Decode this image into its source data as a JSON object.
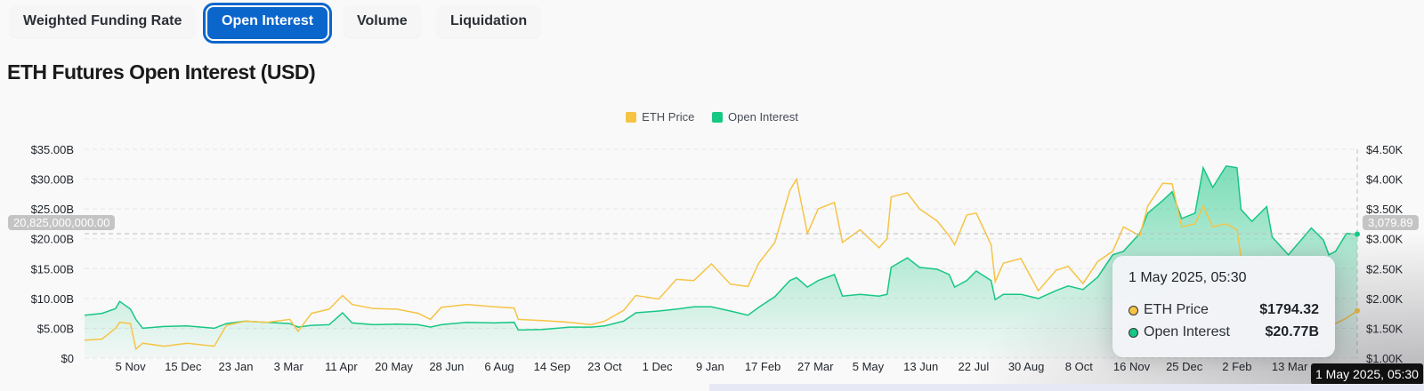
{
  "tabs": [
    {
      "label": "Weighted Funding Rate",
      "active": false
    },
    {
      "label": "Open Interest",
      "active": true
    },
    {
      "label": "Volume",
      "active": false
    },
    {
      "label": "Liquidation",
      "active": false
    }
  ],
  "colors": {
    "eth_price": "#f6c445",
    "open_interest": "#17c784",
    "active_tab": "#0b66cc"
  },
  "chart_data": {
    "type": "line",
    "title": "ETH Futures Open Interest (USD)",
    "legend": {
      "position": "top-center",
      "entries": [
        "ETH Price",
        "Open Interest"
      ]
    },
    "grid": true,
    "x_ticks": [
      "5 Nov",
      "15 Dec",
      "23 Jan",
      "3 Mar",
      "11 Apr",
      "20 May",
      "28 Jun",
      "6 Aug",
      "14 Sep",
      "23 Oct",
      "1 Dec",
      "9 Jan",
      "17 Feb",
      "27 Mar",
      "5 May",
      "13 Jun",
      "22 Jul",
      "30 Aug",
      "8 Oct",
      "16 Nov",
      "25 Dec",
      "2 Feb",
      "13 Mar"
    ],
    "y_left": {
      "ticks": [
        "$0",
        "$5.00B",
        "$10.00B",
        "$15.00B",
        "$20.00B",
        "$25.00B",
        "$30.00B",
        "$35.00B"
      ],
      "range": [
        0,
        35
      ],
      "unit": "USD billions"
    },
    "y_right": {
      "ticks": [
        "$1.00K",
        "$1.50K",
        "$2.00K",
        "$2.50K",
        "$3.00K",
        "$3.50K",
        "$4.00K",
        "$4.50K"
      ],
      "range": [
        1000,
        4500
      ],
      "unit": "USD"
    },
    "x": [
      "2022-10-02",
      "2022-10-15",
      "2022-10-25",
      "2022-10-28",
      "2022-11-05",
      "2022-11-09",
      "2022-11-14",
      "2022-11-30",
      "2022-12-17",
      "2023-01-06",
      "2023-01-15",
      "2023-01-29",
      "2023-02-14",
      "2023-03-03",
      "2023-03-09",
      "2023-03-19",
      "2023-04-01",
      "2023-04-11",
      "2023-04-18",
      "2023-05-04",
      "2023-05-21",
      "2023-06-06",
      "2023-06-15",
      "2023-06-23",
      "2023-07-12",
      "2023-08-01",
      "2023-08-16",
      "2023-08-19",
      "2023-09-06",
      "2023-09-26",
      "2023-10-12",
      "2023-10-22",
      "2023-11-05",
      "2023-11-14",
      "2023-12-01",
      "2023-12-14",
      "2023-12-27",
      "2024-01-09",
      "2024-01-23",
      "2024-02-05",
      "2024-02-13",
      "2024-02-25",
      "2024-03-07",
      "2024-03-12",
      "2024-03-20",
      "2024-03-28",
      "2024-04-09",
      "2024-04-15",
      "2024-04-28",
      "2024-05-12",
      "2024-05-18",
      "2024-05-21",
      "2024-06-02",
      "2024-06-11",
      "2024-06-24",
      "2024-07-03",
      "2024-07-07",
      "2024-07-16",
      "2024-07-23",
      "2024-08-03",
      "2024-08-06",
      "2024-08-12",
      "2024-08-25",
      "2024-09-07",
      "2024-09-20",
      "2024-09-29",
      "2024-10-10",
      "2024-10-21",
      "2024-11-01",
      "2024-11-09",
      "2024-11-21",
      "2024-11-27",
      "2024-12-08",
      "2024-12-15",
      "2024-12-22",
      "2025-01-01",
      "2025-01-07",
      "2025-01-14",
      "2025-01-24",
      "2025-02-01",
      "2025-02-04",
      "2025-02-12",
      "2025-02-23",
      "2025-02-27",
      "2025-03-11",
      "2025-03-28",
      "2025-04-06",
      "2025-04-10",
      "2025-04-15",
      "2025-04-23",
      "2025-05-01"
    ],
    "series": [
      {
        "name": "ETH Price",
        "axis": "right",
        "values": [
          1300,
          1320,
          1500,
          1600,
          1580,
          1150,
          1250,
          1200,
          1250,
          1200,
          1550,
          1620,
          1600,
          1650,
          1450,
          1750,
          1820,
          2050,
          1900,
          1830,
          1820,
          1750,
          1650,
          1850,
          1900,
          1860,
          1840,
          1650,
          1630,
          1600,
          1560,
          1620,
          1800,
          2050,
          1990,
          2320,
          2300,
          2580,
          2240,
          2200,
          2590,
          2940,
          3810,
          4000,
          3090,
          3500,
          3610,
          2940,
          3150,
          2850,
          3000,
          3700,
          3770,
          3500,
          3300,
          3050,
          2900,
          3400,
          3430,
          2900,
          2280,
          2590,
          2670,
          2130,
          2470,
          2540,
          2250,
          2620,
          2790,
          3200,
          3050,
          3550,
          3930,
          3920,
          3200,
          3250,
          3550,
          3200,
          3250,
          3150,
          2700,
          2640,
          2700,
          2200,
          2100,
          1900,
          1800,
          1600,
          1580,
          1670,
          1794.32
        ]
      },
      {
        "name": "Open Interest",
        "axis": "left",
        "values": [
          7.2,
          7.5,
          8.3,
          9.5,
          8.2,
          6.5,
          5.0,
          5.3,
          5.4,
          5.0,
          5.8,
          6.2,
          6.0,
          5.8,
          5.2,
          5.5,
          5.6,
          7.6,
          5.9,
          5.6,
          5.7,
          5.6,
          5.2,
          5.6,
          6.0,
          5.9,
          6.0,
          4.7,
          4.8,
          5.2,
          5.2,
          5.4,
          6.2,
          7.6,
          7.9,
          8.2,
          8.6,
          8.6,
          7.9,
          7.2,
          8.5,
          10.3,
          13.0,
          13.5,
          11.9,
          13.0,
          14.0,
          10.4,
          10.7,
          10.4,
          10.7,
          15.2,
          16.8,
          15.2,
          14.9,
          14.0,
          11.9,
          13.0,
          14.6,
          13.0,
          9.8,
          10.7,
          10.7,
          10.0,
          11.3,
          12.1,
          11.5,
          13.6,
          17.3,
          17.9,
          20.9,
          24.3,
          26.4,
          27.9,
          23.4,
          24.3,
          31.9,
          28.6,
          32.2,
          31.9,
          24.9,
          22.9,
          25.4,
          20.3,
          17.3,
          21.8,
          19.8,
          17.3,
          17.9,
          20.9,
          20.77
        ]
      }
    ],
    "crosshair": {
      "left_value": "20,825,000,000.00",
      "right_value": "3,079.89",
      "date": "1 May 2025, 05:30"
    }
  },
  "tooltip": {
    "date": "1 May 2025, 05:30",
    "rows": [
      {
        "label": "ETH Price",
        "value": "$1794.32"
      },
      {
        "label": "Open Interest",
        "value": "$20.77B"
      }
    ]
  }
}
